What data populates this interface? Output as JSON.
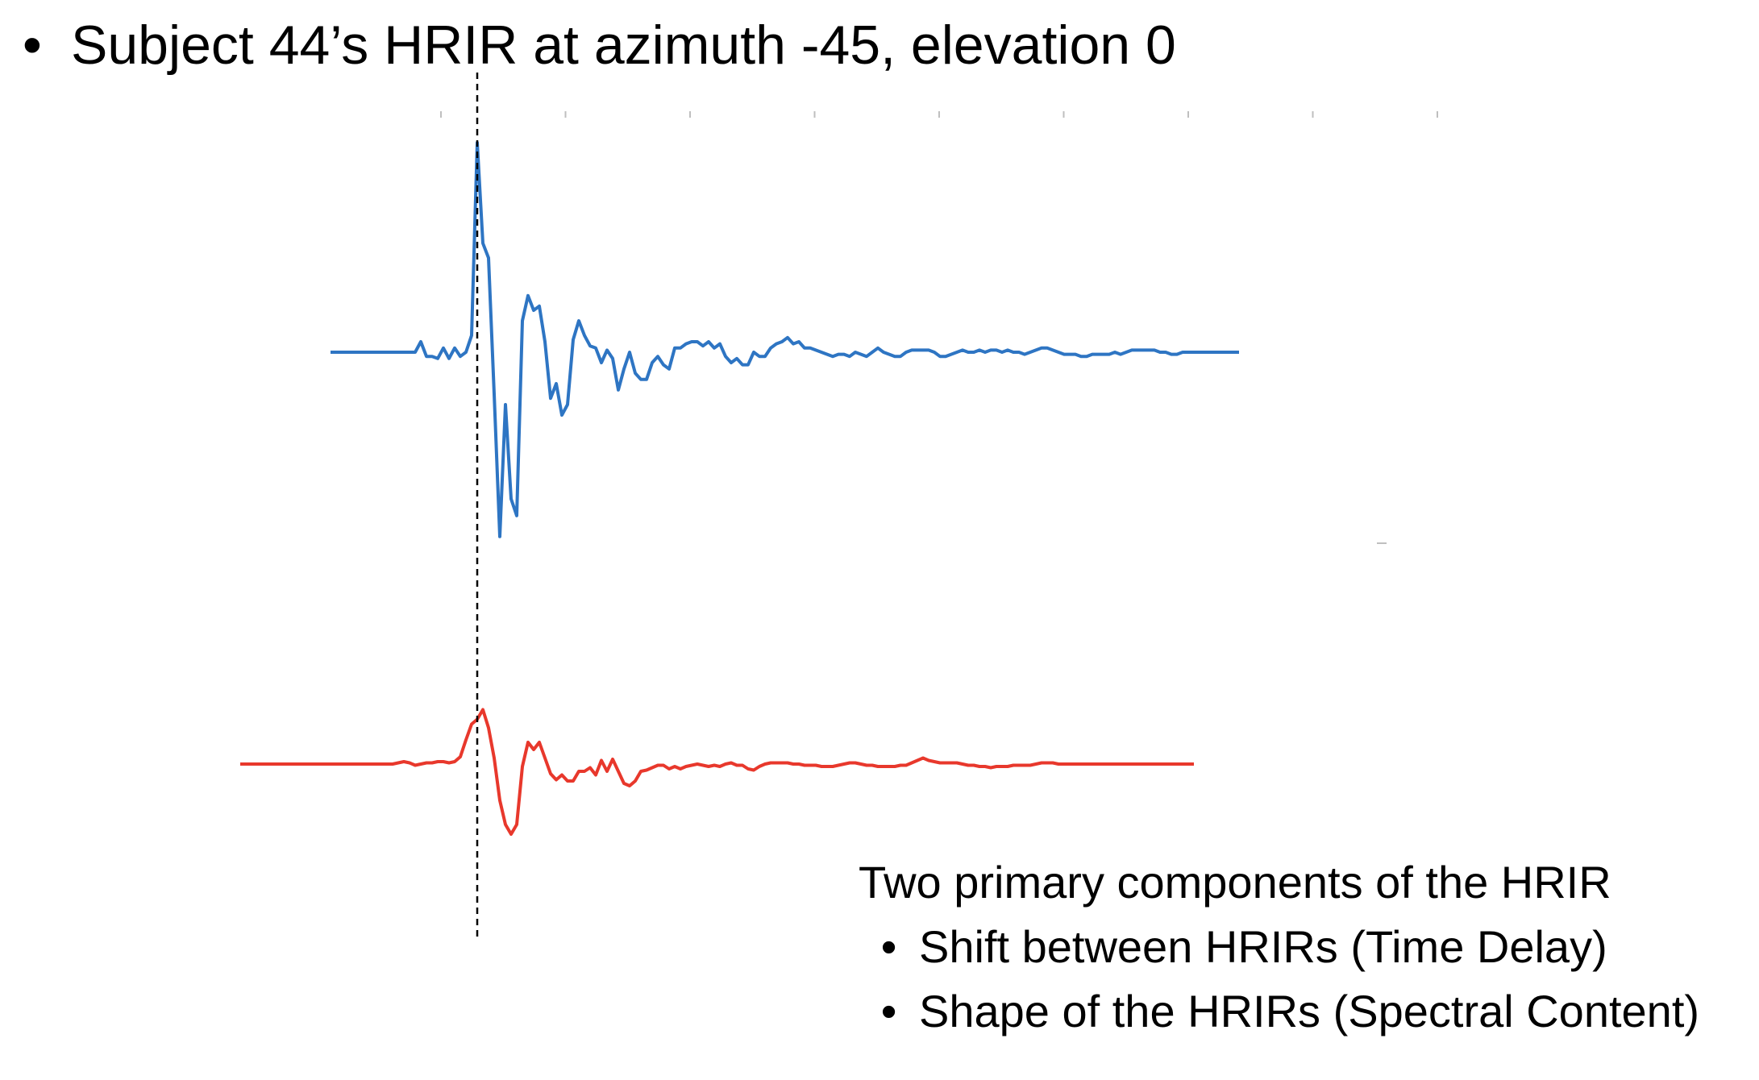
{
  "slide": {
    "title": "Subject 44’s HRIR at azimuth -45, elevation 0",
    "notes": {
      "heading": "Two primary components of the HRIR",
      "items": [
        "Shift between HRIRs (Time Delay)",
        "Shape of the HRIRs (Spectral Content)"
      ]
    }
  },
  "chart_data": {
    "type": "line",
    "title": "",
    "xlabel": "",
    "ylabel": "",
    "grid": false,
    "series": [
      {
        "color": "#2e75c3",
        "x_start": 0,
        "values": [
          0,
          0,
          0,
          0,
          0,
          0,
          0,
          0,
          0,
          0,
          0,
          0,
          0,
          0,
          0,
          0,
          0.05,
          -0.02,
          -0.02,
          -0.03,
          0.02,
          -0.03,
          0.02,
          -0.02,
          0,
          0.08,
          1.0,
          0.52,
          0.45,
          -0.2,
          -0.88,
          -0.25,
          -0.7,
          -0.78,
          0.15,
          0.27,
          0.2,
          0.22,
          0.05,
          -0.22,
          -0.15,
          -0.3,
          -0.25,
          0.06,
          0.15,
          0.08,
          0.03,
          0.02,
          -0.05,
          0.01,
          -0.03,
          -0.18,
          -0.08,
          0,
          -0.1,
          -0.13,
          -0.13,
          -0.05,
          -0.02,
          -0.06,
          -0.08,
          0.02,
          0.02,
          0.04,
          0.05,
          0.05,
          0.03,
          0.05,
          0.02,
          0.04,
          -0.02,
          -0.05,
          -0.03,
          -0.06,
          -0.06,
          0,
          -0.02,
          -0.02,
          0.02,
          0.04,
          0.05,
          0.07,
          0.04,
          0.05,
          0.02,
          0.02,
          0.01,
          0,
          -0.01,
          -0.02,
          -0.01,
          -0.01,
          -0.02,
          0,
          -0.01,
          -0.02,
          0,
          0.02,
          0,
          -0.01,
          -0.02,
          -0.02,
          0,
          0.01,
          0.01,
          0.01,
          0.01,
          0,
          -0.02,
          -0.02,
          -0.01,
          0,
          0.01,
          0,
          0,
          0.01,
          0,
          0.01,
          0.01,
          0,
          0.01,
          0,
          0,
          -0.01,
          0,
          0.01,
          0.02,
          0.02,
          0.01,
          0,
          -0.01,
          -0.01,
          -0.01,
          -0.02,
          -0.02,
          -0.01,
          -0.01,
          -0.01,
          -0.01,
          0,
          -0.01,
          0,
          0.01,
          0.01,
          0.01,
          0.01,
          0.01,
          0,
          0,
          -0.01,
          -0.01,
          0,
          0,
          0,
          0,
          0,
          0,
          0,
          0,
          0,
          0,
          0
        ]
      },
      {
        "color": "#e8382c",
        "x_start": -16,
        "values": [
          0,
          0,
          0,
          0,
          0,
          0,
          0,
          0,
          0,
          0,
          0,
          0,
          0,
          0,
          0,
          0,
          0,
          0,
          0,
          0,
          0,
          0,
          0,
          0,
          0,
          0,
          0,
          0,
          0.01,
          0.02,
          0.01,
          -0.01,
          0,
          0.01,
          0.01,
          0.02,
          0.02,
          0.01,
          0.02,
          0.06,
          0.2,
          0.33,
          0.37,
          0.45,
          0.3,
          0.05,
          -0.3,
          -0.5,
          -0.58,
          -0.5,
          -0.02,
          0.18,
          0.12,
          0.18,
          0.05,
          -0.08,
          -0.13,
          -0.09,
          -0.14,
          -0.14,
          -0.06,
          -0.06,
          -0.03,
          -0.09,
          0.03,
          -0.06,
          0.04,
          -0.06,
          -0.16,
          -0.18,
          -0.14,
          -0.06,
          -0.05,
          -0.03,
          -0.01,
          -0.01,
          -0.04,
          -0.02,
          -0.04,
          -0.02,
          -0.01,
          0,
          -0.01,
          -0.02,
          -0.01,
          -0.02,
          0,
          0.01,
          -0.01,
          -0.01,
          -0.04,
          -0.05,
          -0.02,
          0,
          0.01,
          0.01,
          0.01,
          0.01,
          0,
          0,
          -0.01,
          -0.01,
          -0.01,
          -0.02,
          -0.02,
          -0.02,
          -0.01,
          0,
          0.01,
          0.01,
          0,
          -0.01,
          -0.01,
          -0.02,
          -0.02,
          -0.02,
          -0.02,
          -0.01,
          -0.01,
          0.01,
          0.03,
          0.05,
          0.03,
          0.02,
          0.01,
          0.01,
          0.01,
          0.01,
          0,
          -0.01,
          -0.01,
          -0.02,
          -0.02,
          -0.03,
          -0.02,
          -0.02,
          -0.02,
          -0.01,
          -0.01,
          -0.01,
          -0.01,
          0,
          0.01,
          0.01,
          0.01,
          0,
          0,
          0,
          0,
          0,
          0,
          0,
          0,
          0,
          0,
          0,
          0,
          0,
          0,
          0,
          0,
          0,
          0,
          0,
          0,
          0,
          0,
          0,
          0,
          0
        ]
      }
    ],
    "vertical_marker_x": 26,
    "top_axis_ticks": 9
  }
}
